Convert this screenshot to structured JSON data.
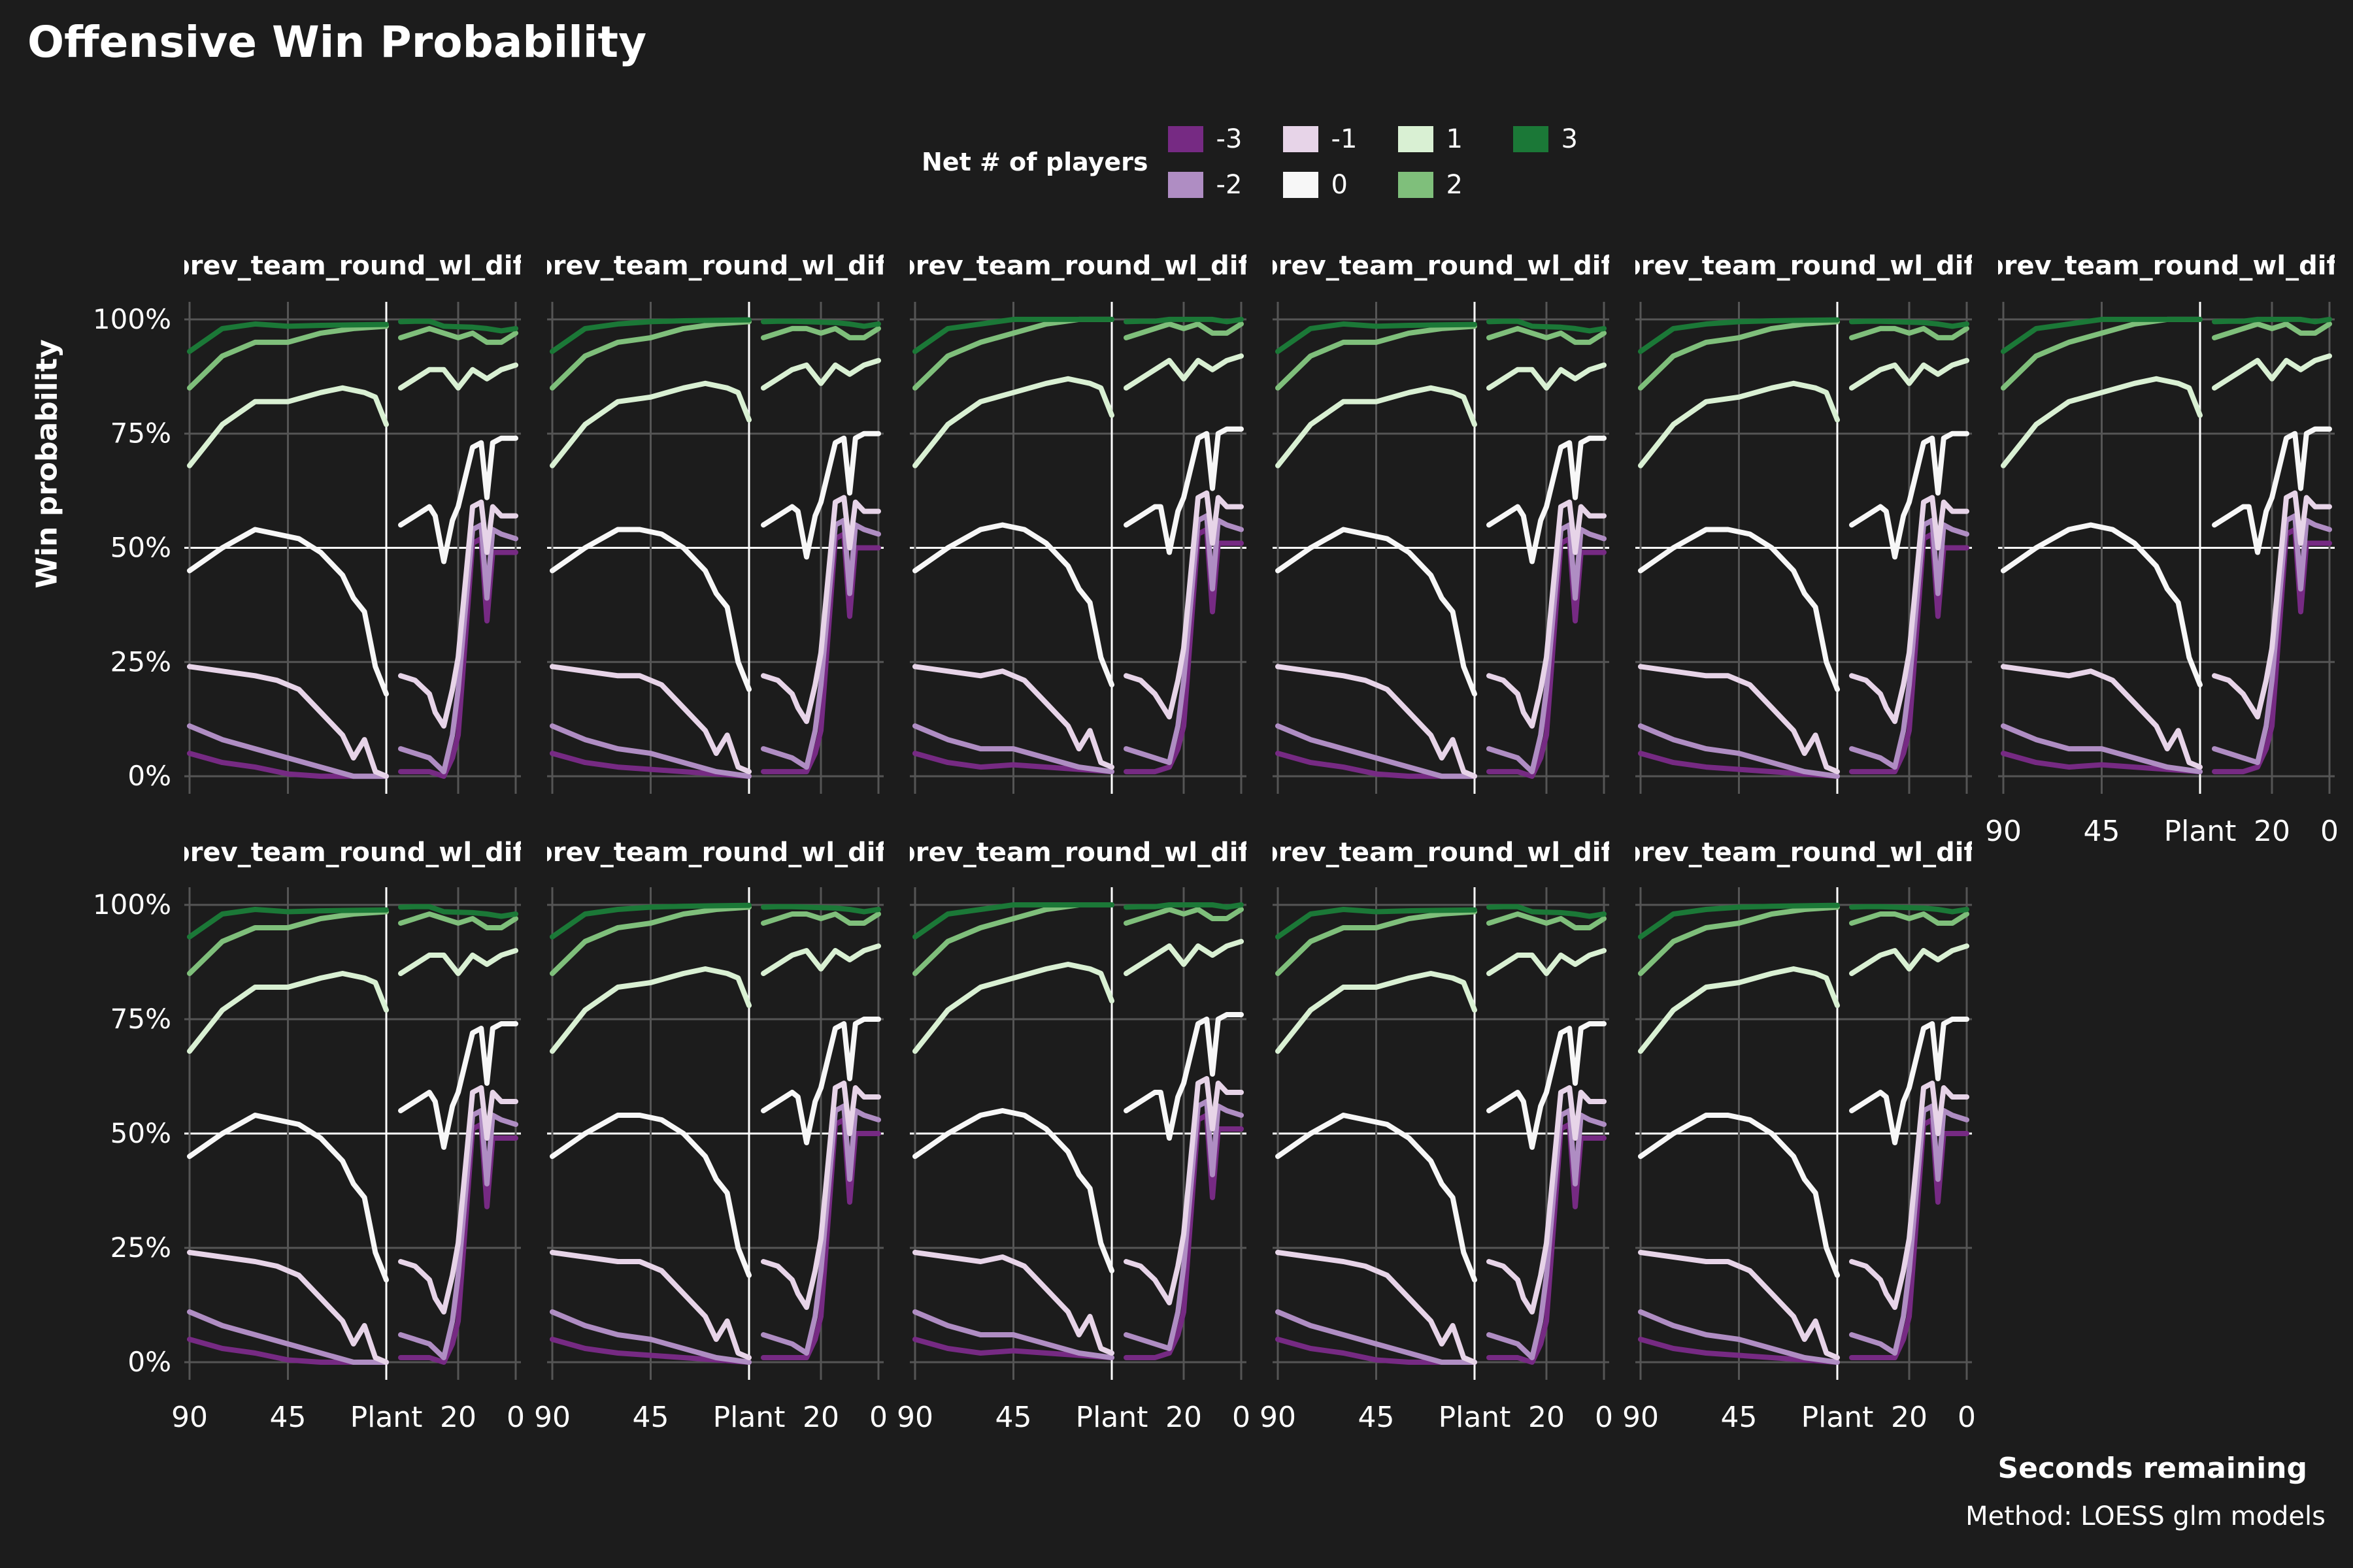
{
  "title": "Offensive Win Probability",
  "ylabel": "Win probability",
  "xlabel": "Seconds remaining",
  "caption": "Method: LOESS glm models",
  "legend": {
    "title": "Net # of players",
    "items": [
      {
        "label": "-3",
        "color": "#762a83"
      },
      {
        "label": "-2",
        "color": "#af8dc3"
      },
      {
        "label": "-1",
        "color": "#e7d4e8"
      },
      {
        "label": "0",
        "color": "#f7f7f7"
      },
      {
        "label": "1",
        "color": "#d9f0d3"
      },
      {
        "label": "2",
        "color": "#7fbf7b"
      },
      {
        "label": "3",
        "color": "#1b7837"
      }
    ]
  },
  "chart_data": {
    "type": "line",
    "facet_strip_text": "prev_team_round_wl_diff",
    "facet_count": 11,
    "y_ticks": [
      "0%",
      "25%",
      "50%",
      "75%",
      "100%"
    ],
    "ylim": [
      0,
      1
    ],
    "x_ticks": [
      "90",
      "45",
      "Plant",
      "20",
      "0"
    ],
    "x_segments": [
      {
        "name": "pre-plant",
        "range": [
          90,
          0
        ],
        "ticks": [
          90,
          45
        ]
      },
      {
        "name": "post-plant",
        "range": [
          45,
          0
        ],
        "ticks": [
          20,
          0
        ]
      }
    ],
    "reference_lines": {
      "y": 0.5,
      "x": "Plant"
    },
    "series": [
      {
        "name": "3",
        "pre": {
          "x": [
            90,
            75,
            60,
            45,
            30,
            15,
            0
          ],
          "y": [
            0.93,
            0.98,
            0.99,
            0.995,
            0.997,
            0.998,
            0.999
          ]
        },
        "post": {
          "x": [
            40,
            35,
            30,
            25,
            20,
            15,
            10,
            5,
            0
          ],
          "y": [
            0.995,
            0.996,
            0.996,
            0.995,
            0.994,
            0.993,
            0.99,
            0.985,
            0.99
          ]
        }
      },
      {
        "name": "2",
        "pre": {
          "x": [
            90,
            75,
            60,
            45,
            30,
            15,
            0
          ],
          "y": [
            0.85,
            0.92,
            0.95,
            0.96,
            0.98,
            0.99,
            0.995
          ]
        },
        "post": {
          "x": [
            40,
            35,
            30,
            25,
            20,
            15,
            10,
            5,
            0
          ],
          "y": [
            0.96,
            0.97,
            0.98,
            0.98,
            0.97,
            0.98,
            0.96,
            0.96,
            0.98
          ]
        }
      },
      {
        "name": "1",
        "pre": {
          "x": [
            90,
            75,
            60,
            45,
            30,
            20,
            10,
            5,
            0
          ],
          "y": [
            0.68,
            0.77,
            0.82,
            0.83,
            0.85,
            0.86,
            0.85,
            0.84,
            0.78
          ]
        },
        "post": {
          "x": [
            40,
            35,
            30,
            25,
            20,
            15,
            10,
            5,
            0
          ],
          "y": [
            0.85,
            0.87,
            0.89,
            0.9,
            0.86,
            0.9,
            0.88,
            0.9,
            0.91
          ]
        }
      },
      {
        "name": "0",
        "pre": {
          "x": [
            90,
            75,
            60,
            50,
            40,
            30,
            20,
            15,
            10,
            5,
            0
          ],
          "y": [
            0.45,
            0.5,
            0.54,
            0.54,
            0.53,
            0.5,
            0.45,
            0.4,
            0.37,
            0.25,
            0.19
          ]
        },
        "post": {
          "x": [
            40,
            35,
            30,
            28,
            25,
            22,
            20,
            15,
            12,
            10,
            8,
            5,
            0
          ],
          "y": [
            0.55,
            0.57,
            0.59,
            0.58,
            0.48,
            0.57,
            0.6,
            0.73,
            0.74,
            0.62,
            0.74,
            0.75,
            0.75
          ]
        }
      },
      {
        "name": "-1",
        "pre": {
          "x": [
            90,
            75,
            60,
            50,
            40,
            30,
            20,
            15,
            10,
            5,
            0
          ],
          "y": [
            0.24,
            0.23,
            0.22,
            0.22,
            0.2,
            0.15,
            0.1,
            0.05,
            0.09,
            0.02,
            0.01
          ]
        },
        "post": {
          "x": [
            40,
            35,
            30,
            28,
            25,
            22,
            20,
            15,
            12,
            10,
            8,
            5,
            0
          ],
          "y": [
            0.22,
            0.21,
            0.18,
            0.15,
            0.12,
            0.2,
            0.27,
            0.6,
            0.61,
            0.5,
            0.6,
            0.58,
            0.58
          ]
        }
      },
      {
        "name": "-2",
        "pre": {
          "x": [
            90,
            75,
            60,
            45,
            30,
            15,
            0
          ],
          "y": [
            0.11,
            0.08,
            0.06,
            0.05,
            0.03,
            0.01,
            0.0
          ]
        },
        "post": {
          "x": [
            40,
            35,
            30,
            25,
            22,
            20,
            15,
            12,
            10,
            8,
            5,
            0
          ],
          "y": [
            0.06,
            0.05,
            0.04,
            0.02,
            0.1,
            0.2,
            0.55,
            0.56,
            0.4,
            0.55,
            0.54,
            0.53
          ]
        }
      },
      {
        "name": "-3",
        "pre": {
          "x": [
            90,
            75,
            60,
            45,
            30,
            15,
            0
          ],
          "y": [
            0.05,
            0.03,
            0.02,
            0.015,
            0.01,
            0.005,
            0.0
          ]
        },
        "post": {
          "x": [
            40,
            35,
            30,
            25,
            22,
            20,
            15,
            12,
            10,
            8,
            5,
            0
          ],
          "y": [
            0.01,
            0.01,
            0.01,
            0.01,
            0.05,
            0.1,
            0.52,
            0.53,
            0.35,
            0.5,
            0.5,
            0.5
          ]
        }
      }
    ]
  }
}
